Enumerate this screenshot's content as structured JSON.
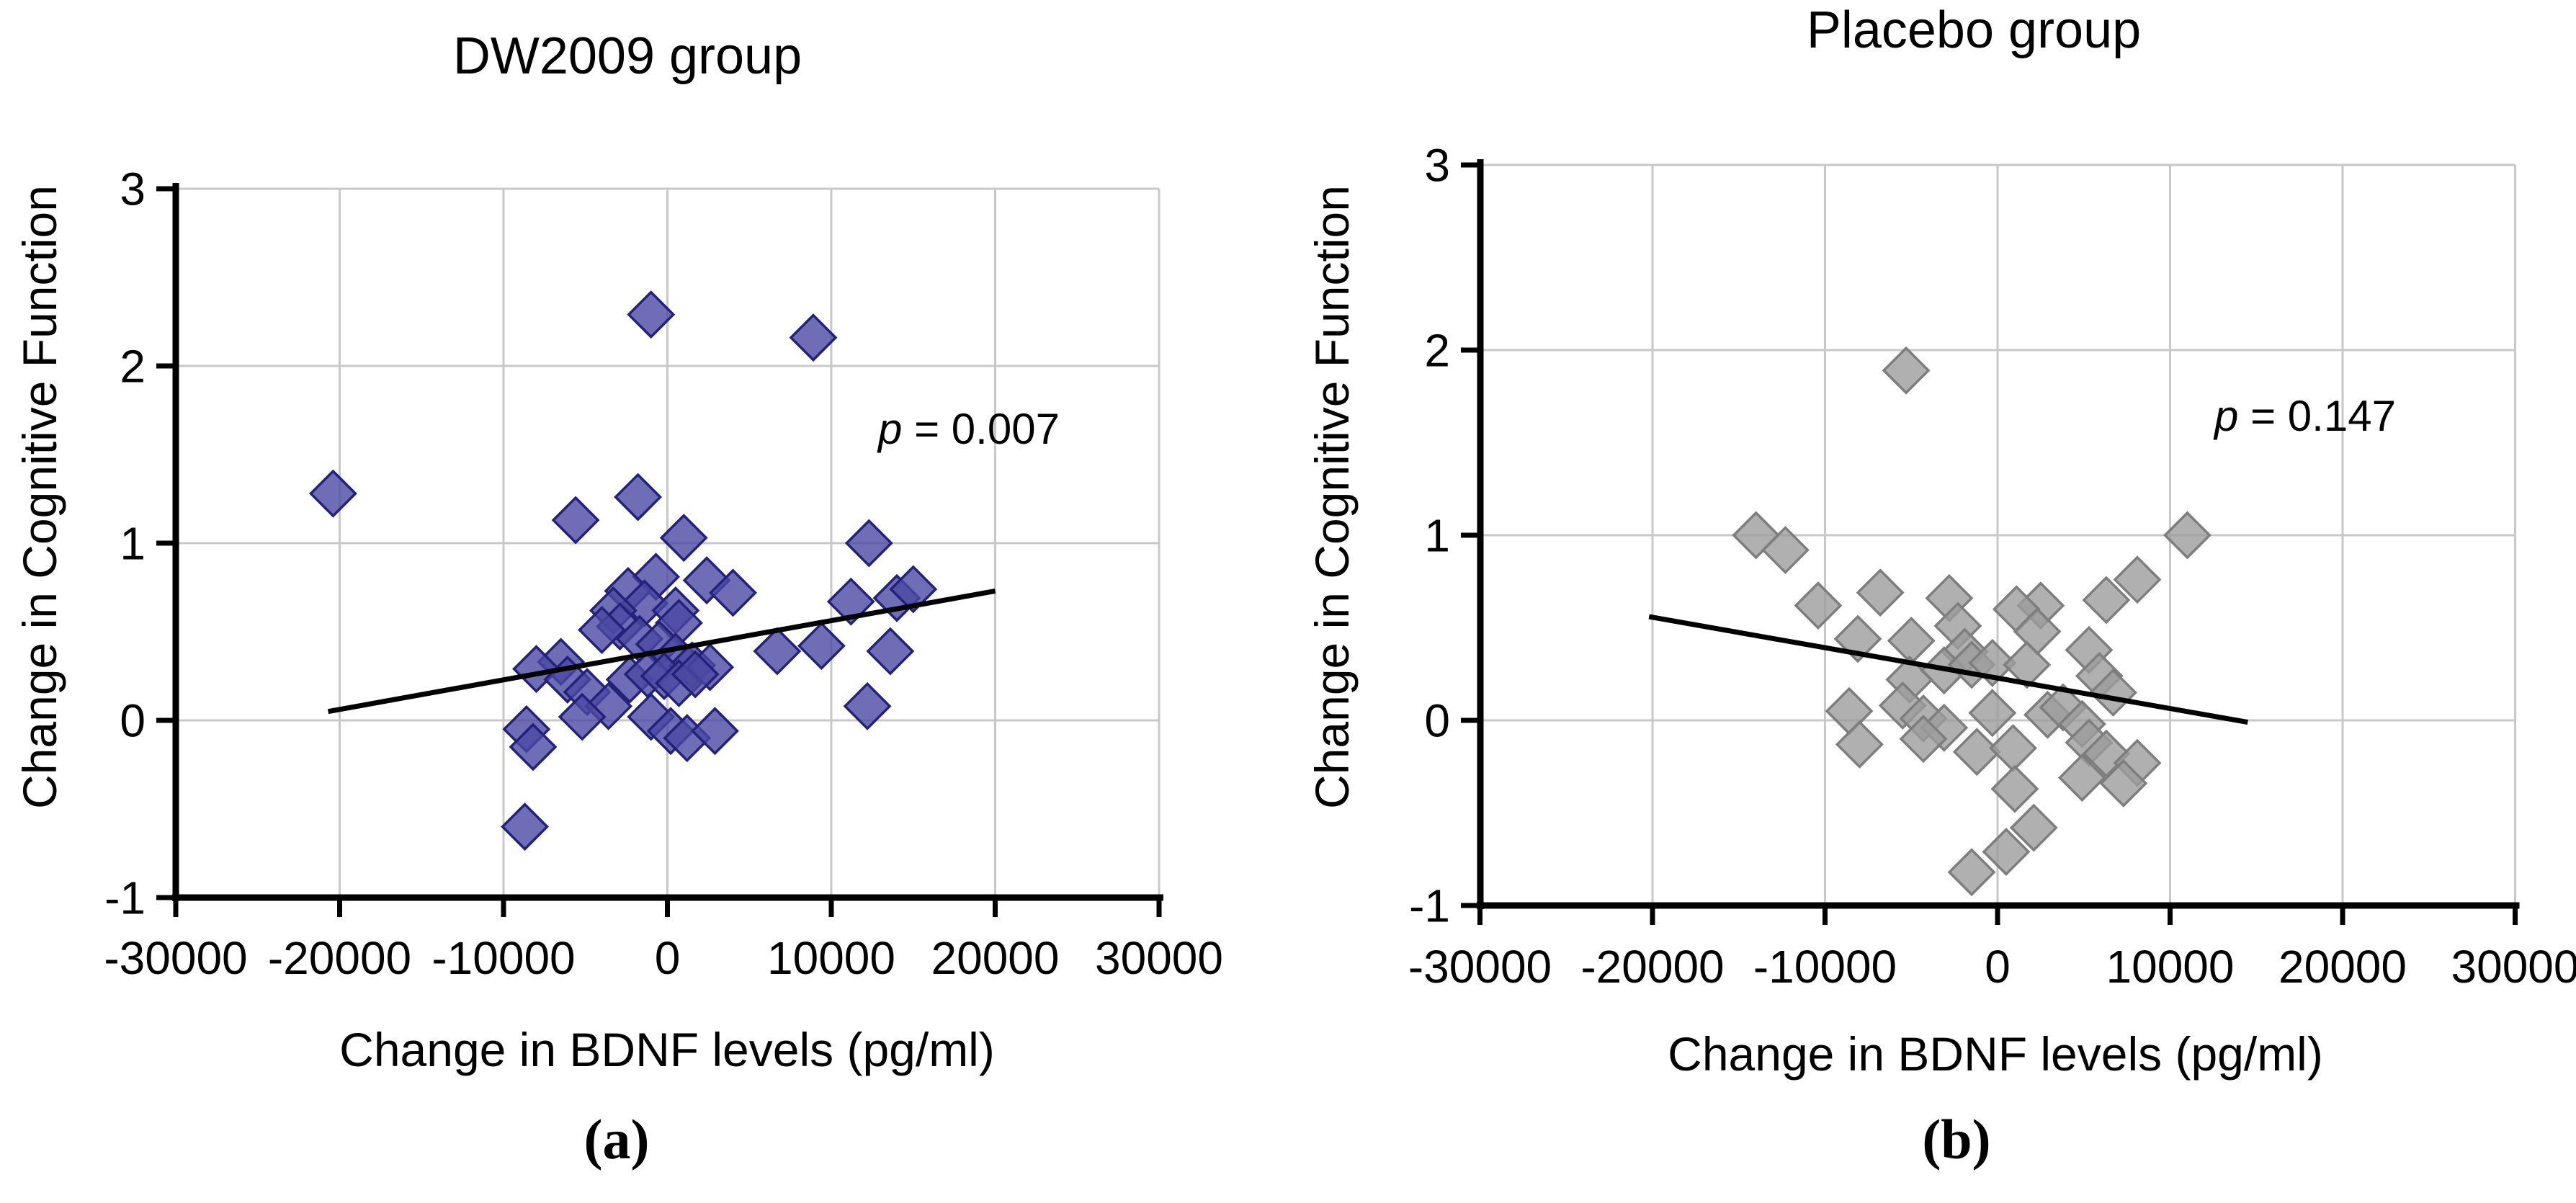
{
  "figure": {
    "background": "#FFFFFF",
    "panels": [
      "DW2009 group",
      "Placebo group"
    ]
  },
  "colors": {
    "gridline": "#C8C8C8",
    "axis": "#000000",
    "trendline": "#000000",
    "blue_marker_fill": "#4B49A2",
    "blue_marker_edge": "#23227A",
    "gray_marker_fill": "#9C9C9C",
    "gray_marker_edge": "#7E7E7E"
  },
  "chart_data": [
    {
      "id": "a",
      "type": "scatter",
      "title": "DW2009 group",
      "xlabel": "Change in BDNF levels (pg/ml)",
      "ylabel": "Change in Cognitive Function",
      "annotation": "p = 0.007",
      "panel_letter": "(a)",
      "legend": "none",
      "grid": true,
      "xlim": [
        -30000,
        30000
      ],
      "ylim": [
        -1,
        3
      ],
      "xticks": [
        "-30000",
        "-20000",
        "-10000",
        "0",
        "10000",
        "20000",
        "30000"
      ],
      "yticks": [
        "3",
        "2",
        "1",
        "0",
        "-1"
      ],
      "marker": {
        "shape": "diamond",
        "fill": "#4B49A2",
        "edge": "#23227A",
        "opacity": 0.8
      },
      "trendline": {
        "x1": -20700,
        "y1": 0.05,
        "x2": 20000,
        "y2": 0.73
      },
      "points": [
        [
          -20400,
          1.28
        ],
        [
          -1000,
          2.29
        ],
        [
          8900,
          2.16
        ],
        [
          -5600,
          1.13
        ],
        [
          -1800,
          1.26
        ],
        [
          1000,
          1.03
        ],
        [
          12300,
          1.0
        ],
        [
          -700,
          0.81
        ],
        [
          2400,
          0.79
        ],
        [
          4000,
          0.72
        ],
        [
          -2400,
          0.73
        ],
        [
          -1400,
          0.66
        ],
        [
          500,
          0.62
        ],
        [
          700,
          0.55
        ],
        [
          -3300,
          0.62
        ],
        [
          -2900,
          0.53
        ],
        [
          -4000,
          0.51
        ],
        [
          -1700,
          0.46
        ],
        [
          -500,
          0.43
        ],
        [
          500,
          0.36
        ],
        [
          1500,
          0.31
        ],
        [
          2600,
          0.3
        ],
        [
          -6500,
          0.33
        ],
        [
          -8000,
          0.29
        ],
        [
          -6100,
          0.23
        ],
        [
          -4900,
          0.16
        ],
        [
          -3600,
          0.08
        ],
        [
          -2300,
          0.23
        ],
        [
          -1200,
          0.26
        ],
        [
          -200,
          0.25
        ],
        [
          700,
          0.21
        ],
        [
          1700,
          0.26
        ],
        [
          -1000,
          0.02
        ],
        [
          -5200,
          0.02
        ],
        [
          200,
          -0.06
        ],
        [
          1200,
          -0.1
        ],
        [
          2900,
          -0.06
        ],
        [
          -8600,
          -0.05
        ],
        [
          -8200,
          -0.15
        ],
        [
          -8700,
          -0.6
        ],
        [
          6700,
          0.39
        ],
        [
          9400,
          0.42
        ],
        [
          11200,
          0.67
        ],
        [
          14000,
          0.69
        ],
        [
          15000,
          0.74
        ],
        [
          13600,
          0.39
        ],
        [
          12200,
          0.08
        ]
      ]
    },
    {
      "id": "b",
      "type": "scatter",
      "title": "Placebo group",
      "xlabel": "Change in BDNF levels (pg/ml)",
      "ylabel": "Change in Cognitive Function",
      "annotation": "p = 0.147",
      "panel_letter": "(b)",
      "legend": "none",
      "grid": true,
      "xlim": [
        -30000,
        30000
      ],
      "ylim": [
        -1,
        3
      ],
      "xticks": [
        "-30000",
        "-20000",
        "-10000",
        "0",
        "10000",
        "20000",
        "30000"
      ],
      "yticks": [
        "3",
        "2",
        "1",
        "0",
        "-1"
      ],
      "marker": {
        "shape": "diamond",
        "fill": "#9C9C9C",
        "edge": "#7E7E7E",
        "opacity": 0.8
      },
      "trendline": {
        "x1": -20200,
        "y1": 0.56,
        "x2": 14500,
        "y2": -0.01
      },
      "points": [
        [
          -5300,
          1.89
        ],
        [
          -14000,
          1.0
        ],
        [
          -12300,
          0.92
        ],
        [
          11000,
          1.0
        ],
        [
          8100,
          0.76
        ],
        [
          -6800,
          0.69
        ],
        [
          -10400,
          0.62
        ],
        [
          -2800,
          0.66
        ],
        [
          2500,
          0.62
        ],
        [
          6300,
          0.65
        ],
        [
          -8100,
          0.44
        ],
        [
          -5000,
          0.43
        ],
        [
          -2300,
          0.51
        ],
        [
          -1900,
          0.37
        ],
        [
          1100,
          0.6
        ],
        [
          2300,
          0.48
        ],
        [
          5300,
          0.38
        ],
        [
          -5100,
          0.22
        ],
        [
          -3100,
          0.27
        ],
        [
          -1500,
          0.3
        ],
        [
          -300,
          0.31
        ],
        [
          1700,
          0.3
        ],
        [
          5900,
          0.24
        ],
        [
          6700,
          0.15
        ],
        [
          -8600,
          0.05
        ],
        [
          -5500,
          0.08
        ],
        [
          -4300,
          0.01
        ],
        [
          -3100,
          -0.04
        ],
        [
          -300,
          0.04
        ],
        [
          2900,
          0.03
        ],
        [
          3800,
          0.07
        ],
        [
          4900,
          -0.02
        ],
        [
          -8000,
          -0.13
        ],
        [
          -4300,
          -0.1
        ],
        [
          -1200,
          -0.17
        ],
        [
          900,
          -0.15
        ],
        [
          5300,
          -0.12
        ],
        [
          6300,
          -0.18
        ],
        [
          8100,
          -0.23
        ],
        [
          4900,
          -0.31
        ],
        [
          7300,
          -0.34
        ],
        [
          1000,
          -0.37
        ],
        [
          2100,
          -0.58
        ],
        [
          500,
          -0.71
        ],
        [
          -1500,
          -0.82
        ]
      ]
    }
  ]
}
